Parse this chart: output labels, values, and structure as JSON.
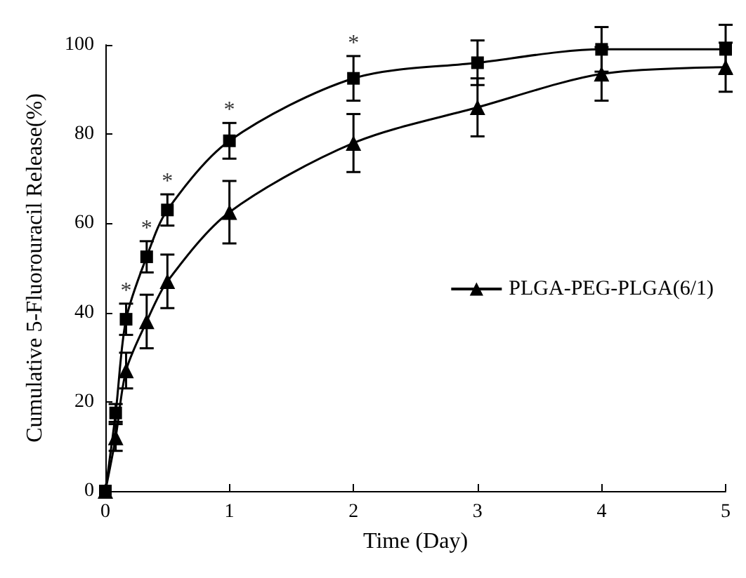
{
  "chart_data": {
    "type": "line",
    "xlabel": "Time (Day)",
    "ylabel": "Cumulative 5-Fluorouracil Release(%)",
    "x": [
      0,
      0.083,
      0.167,
      0.333,
      0.5,
      1,
      2,
      3,
      4,
      5
    ],
    "series": [
      {
        "name": "PLGA-PEG-PLGA(6/1)",
        "color": "#000000",
        "marker": "triangle",
        "values": [
          0,
          12,
          27,
          38,
          47,
          62.5,
          78,
          86,
          93.5,
          95
        ],
        "errors": [
          null,
          3,
          4,
          6,
          6,
          7,
          6.5,
          6.5,
          6,
          5.5
        ]
      },
      {
        "color": "#000000",
        "marker": "square",
        "values": [
          0,
          17.5,
          38.5,
          52.5,
          63,
          78.5,
          92.5,
          96,
          99,
          99
        ],
        "errors": [
          null,
          2,
          3.5,
          3.5,
          3.5,
          4,
          5,
          5,
          5,
          5.5
        ]
      }
    ],
    "annotations": [
      {
        "text": "*",
        "x": 0.167,
        "y": 42
      },
      {
        "text": "*",
        "x": 0.333,
        "y": 56
      },
      {
        "text": "*",
        "x": 0.5,
        "y": 66.5
      },
      {
        "text": "*",
        "x": 1,
        "y": 82.5
      },
      {
        "text": "*",
        "x": 2,
        "y": 97.5
      }
    ],
    "xlim": [
      0,
      5
    ],
    "xticks": [
      0,
      1,
      2,
      3,
      4,
      5
    ],
    "ylim": [
      0,
      100
    ],
    "yticks": [
      0,
      20,
      40,
      60,
      80,
      100
    ],
    "grid": false,
    "legend": "right",
    "line_style": "solid"
  }
}
